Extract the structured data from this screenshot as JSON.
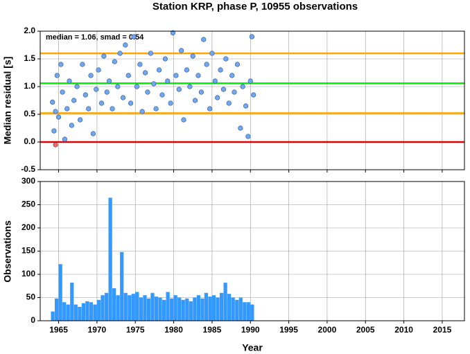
{
  "chart_data": [
    {
      "type": "scatter",
      "title": "Station KRP, phase P, 10955 observations",
      "ylabel": "Median residual [s]",
      "annotation": "median = 1.06, smad = 0.54",
      "xlim": [
        1962.6,
        2017.9
      ],
      "xticks": [
        1965,
        1970,
        1975,
        1980,
        1985,
        1990,
        1995,
        2000,
        2005,
        2010,
        2015
      ],
      "ylim": [
        -0.5,
        2.0
      ],
      "yticks": [
        -0.5,
        {
          "value": 0,
          "label": "0.0"
        },
        0.5,
        {
          "value": 1,
          "label": "1.0"
        },
        1.5,
        {
          "value": 2,
          "label": "2.0"
        }
      ],
      "grid": true,
      "hlines": [
        {
          "value": 0,
          "color": "#dd0000"
        },
        {
          "value": 0.52,
          "color": "#ffa500"
        },
        {
          "value": 1.06,
          "color": "#00ee00"
        },
        {
          "value": 1.6,
          "color": "#ffa500"
        }
      ],
      "series": [
        {
          "color": "#6fa8f0",
          "x": [
            1964.2,
            1964.4,
            1964.6,
            1964.8,
            1965.0,
            1965.3,
            1965.5,
            1965.8,
            1966.1,
            1966.4,
            1966.7,
            1967.0,
            1967.4,
            1967.8,
            1968.1,
            1968.5,
            1968.9,
            1969.2,
            1969.5,
            1969.9,
            1970.2,
            1970.6,
            1970.9,
            1971.3,
            1971.6,
            1972.0,
            1972.3,
            1972.7,
            1973.0,
            1973.4,
            1973.7,
            1974.1,
            1974.4,
            1974.8,
            1975.2,
            1975.6,
            1975.9,
            1976.3,
            1976.6,
            1977.0,
            1977.4,
            1977.7,
            1978.1,
            1978.5,
            1978.9,
            1979.2,
            1979.6,
            1979.9,
            1980.3,
            1980.7,
            1981.0,
            1981.3,
            1981.7,
            1982.1,
            1982.5,
            1982.8,
            1983.2,
            1983.6,
            1983.9,
            1984.3,
            1984.7,
            1985.0,
            1985.4,
            1985.7,
            1986.1,
            1986.5,
            1986.8,
            1987.2,
            1987.6,
            1987.9,
            1988.3,
            1988.7,
            1989.0,
            1989.4,
            1989.7,
            1990.0,
            1990.2,
            1990.4
          ],
          "values": [
            0.72,
            0.2,
            0.55,
            1.2,
            0.45,
            1.4,
            0.9,
            0.05,
            0.6,
            1.1,
            0.3,
            0.75,
            1.0,
            0.4,
            1.4,
            0.85,
            0.6,
            1.2,
            0.15,
            0.95,
            1.3,
            0.7,
            1.55,
            0.9,
            1.1,
            0.6,
            1.45,
            1.0,
            1.6,
            0.8,
            1.75,
            1.2,
            0.7,
            1.9,
            1.0,
            1.4,
            0.55,
            1.25,
            0.9,
            1.6,
            1.05,
            0.6,
            1.3,
            0.85,
            1.5,
            1.1,
            0.7,
            1.97,
            1.2,
            0.95,
            1.65,
            0.4,
            1.3,
            1.0,
            1.55,
            0.75,
            1.2,
            0.9,
            1.85,
            1.4,
            0.6,
            1.6,
            1.1,
            0.8,
            1.3,
            0.95,
            1.5,
            0.7,
            1.2,
            0.9,
            1.4,
            0.25,
            1.0,
            0.65,
            0.1,
            1.1,
            1.9,
            0.85
          ]
        },
        {
          "color": "#ff6655",
          "x": [
            1964.6
          ],
          "values": [
            -0.05
          ]
        }
      ]
    },
    {
      "type": "histogram",
      "xlabel": "Year",
      "ylabel": "Observations",
      "xlim": [
        1962.6,
        2017.9
      ],
      "xticks": [
        1965,
        1970,
        1975,
        1980,
        1985,
        1990,
        1995,
        2000,
        2005,
        2010,
        2015
      ],
      "ylim": [
        0,
        300
      ],
      "yticks": [
        0,
        50,
        100,
        150,
        200,
        250,
        300
      ],
      "grid": true,
      "color": "#3399ff",
      "bins": [
        1964.0,
        1964.5,
        1965.0,
        1965.5,
        1966.0,
        1966.5,
        1967.0,
        1967.5,
        1968.0,
        1968.5,
        1969.0,
        1969.5,
        1970.0,
        1970.5,
        1971.0,
        1971.5,
        1972.0,
        1972.5,
        1973.0,
        1973.5,
        1974.0,
        1974.5,
        1975.0,
        1975.5,
        1976.0,
        1976.5,
        1977.0,
        1977.5,
        1978.0,
        1978.5,
        1979.0,
        1979.5,
        1980.0,
        1980.5,
        1981.0,
        1981.5,
        1982.0,
        1982.5,
        1983.0,
        1983.5,
        1984.0,
        1984.5,
        1985.0,
        1985.5,
        1986.0,
        1986.5,
        1987.0,
        1987.5,
        1988.0,
        1988.5,
        1989.0,
        1989.5,
        1990.0,
        1990.5
      ],
      "values": [
        20,
        48,
        122,
        40,
        35,
        82,
        35,
        30,
        38,
        42,
        40,
        35,
        45,
        55,
        60,
        265,
        70,
        55,
        148,
        60,
        55,
        58,
        62,
        50,
        55,
        48,
        60,
        52,
        50,
        45,
        62,
        48,
        55,
        50,
        45,
        48,
        42,
        50,
        55,
        48,
        60,
        52,
        55,
        50,
        60,
        82,
        58,
        50,
        45,
        50,
        40,
        40,
        35
      ]
    }
  ]
}
